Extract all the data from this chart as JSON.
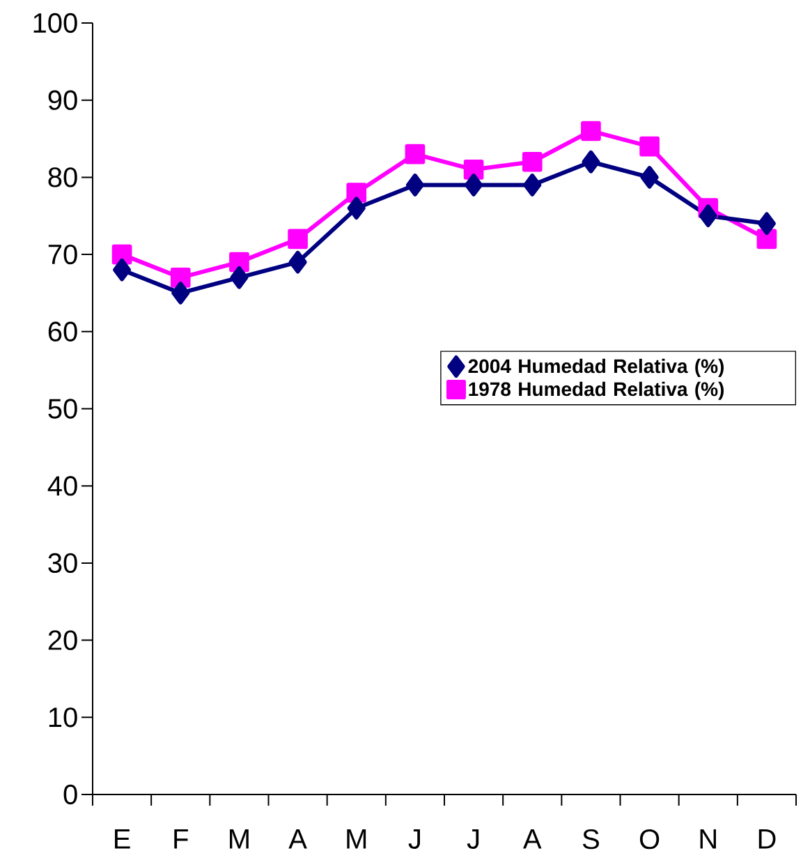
{
  "chart_data": {
    "type": "line",
    "categories": [
      "E",
      "F",
      "M",
      "A",
      "M",
      "J",
      "J",
      "A",
      "S",
      "O",
      "N",
      "D"
    ],
    "series": [
      {
        "name": "2004 Humedad Relativa (%)",
        "color": "#000080",
        "marker": "diamond",
        "values": [
          68,
          65,
          67,
          69,
          76,
          79,
          79,
          79,
          82,
          80,
          75,
          74
        ]
      },
      {
        "name": "1978 Humedad Relativa (%)",
        "color": "#ff00ff",
        "marker": "square",
        "values": [
          70,
          67,
          69,
          72,
          78,
          83,
          81,
          82,
          86,
          84,
          76,
          72
        ]
      }
    ],
    "ylim": [
      0,
      100
    ],
    "yticks": [
      0,
      10,
      20,
      30,
      40,
      50,
      60,
      70,
      80,
      90,
      100
    ],
    "grid": false,
    "legend": "right"
  }
}
